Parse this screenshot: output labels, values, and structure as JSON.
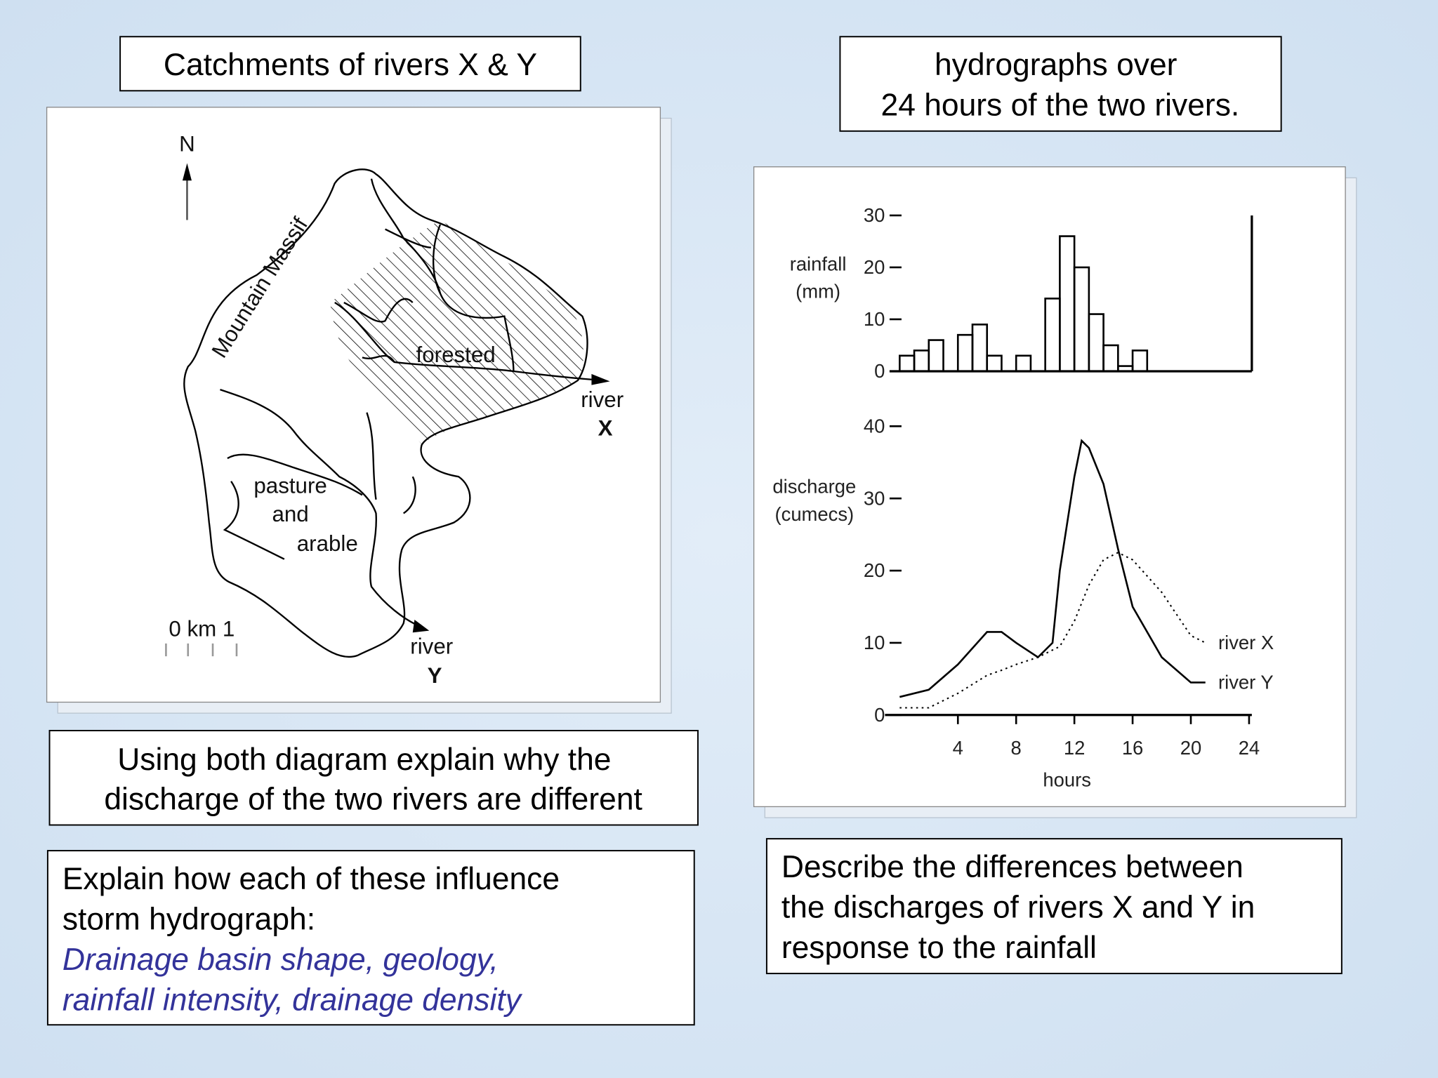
{
  "boxes": {
    "catchments_title": "Catchments of rivers X & Y",
    "hydrograph_title": [
      "hydrographs over",
      "24 hours of the two rivers."
    ],
    "question_1": [
      "Using both diagram explain why the",
      "discharge of the two rivers are different"
    ],
    "question_2": {
      "lines": [
        "Explain how each of these influence",
        "storm hydrograph:"
      ],
      "emphasis": [
        "Drainage basin shape, geology,",
        "rainfall intensity, drainage density"
      ]
    },
    "question_3": [
      "Describe the differences between",
      "the discharges of rivers X and Y in",
      "response to the rainfall"
    ]
  },
  "map": {
    "labels": {
      "north": "N",
      "ridge": "Mountain Massif",
      "forest": "forested",
      "farm": [
        "pasture",
        "and",
        "arable"
      ],
      "river_x": [
        "river",
        "X"
      ],
      "river_y": [
        "river",
        "Y"
      ],
      "scale": "0 km 1"
    }
  },
  "chart_data": [
    {
      "type": "histogram",
      "ylabel": [
        "rainfall",
        "(mm)"
      ],
      "bins": [
        0,
        1,
        2,
        3,
        4,
        5,
        6,
        7,
        8,
        9,
        10,
        11,
        12,
        13,
        14,
        15,
        16,
        17
      ],
      "values": [
        3,
        4,
        6,
        0,
        7,
        9,
        3,
        0,
        3,
        0,
        14,
        26,
        20,
        11,
        5,
        1,
        4
      ],
      "color": "#000000",
      "xlim": [
        0,
        24
      ],
      "ylim": [
        0,
        30
      ],
      "yticks": [
        0,
        10,
        20,
        30
      ]
    },
    {
      "type": "line",
      "ylabel": [
        "discharge",
        "(cumecs)"
      ],
      "xlabel": "hours",
      "x": [
        0,
        2,
        4,
        6,
        7,
        8,
        9.5,
        10.5,
        11,
        12,
        12.5,
        13,
        14,
        15,
        16,
        18,
        20,
        21
      ],
      "series": [
        {
          "name": "river X",
          "color": "#000000",
          "dash": "dotted",
          "values": [
            1,
            1,
            3,
            5.5,
            6.2,
            7,
            8,
            9,
            9.5,
            13,
            15.5,
            18,
            21.5,
            22.5,
            21.5,
            17,
            11,
            10
          ]
        },
        {
          "name": "river Y",
          "color": "#000000",
          "dash": "solid",
          "values": [
            2.5,
            3.5,
            7,
            11.5,
            11.5,
            10,
            8,
            10,
            20,
            33,
            38,
            37,
            32,
            23,
            15,
            8,
            4.5,
            4.5
          ]
        }
      ],
      "xlim": [
        0,
        24
      ],
      "ylim": [
        0,
        40
      ],
      "xticks": [
        4,
        8,
        12,
        16,
        20,
        24
      ],
      "yticks": [
        0,
        10,
        20,
        30,
        40
      ]
    }
  ]
}
